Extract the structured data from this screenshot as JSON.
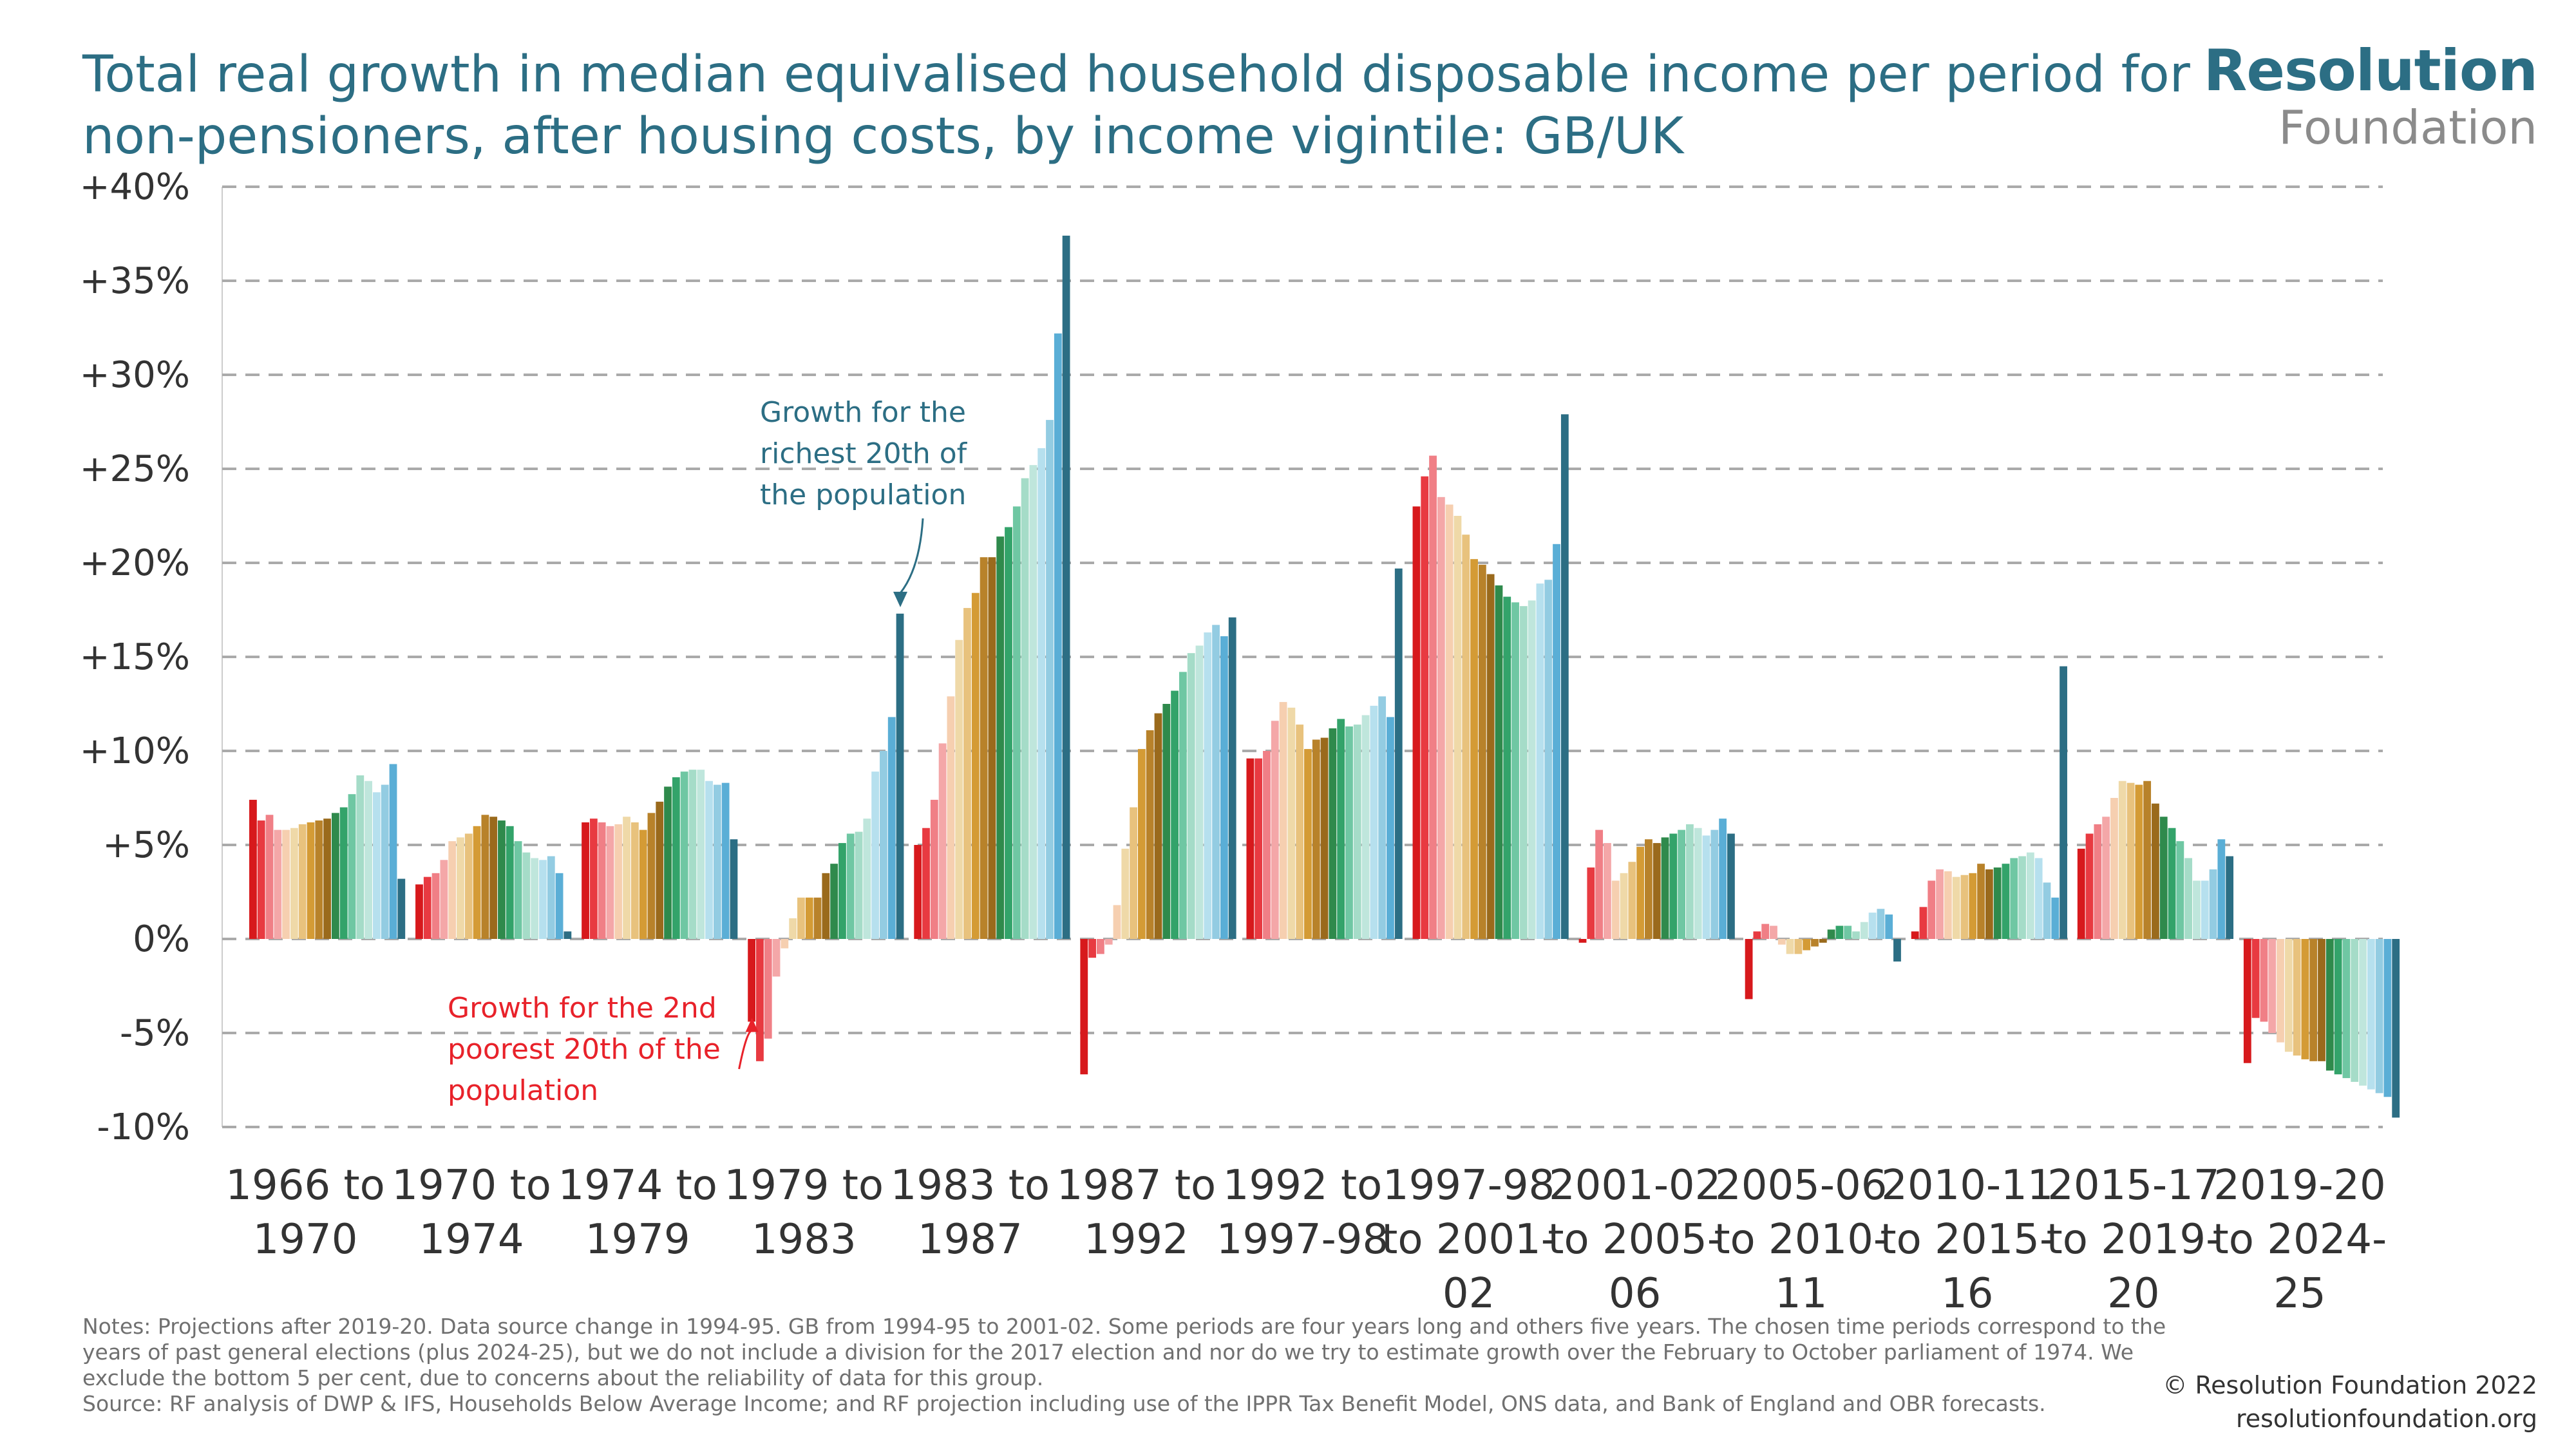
{
  "title": "Total real growth in median equivalised household disposable income per period for non-pensioners, after housing costs, by income vigintile: GB/UK",
  "logo": {
    "name": "Resolution",
    "sub": "Foundation"
  },
  "notes": "Notes: Projections after 2019-20. Data source change in 1994-95. GB from 1994-95 to 2001-02. Some periods are four years long and others five years. The chosen time periods correspond to the years of past general elections (plus 2024-25), but we do not include a division for the 2017 election and nor do we try to estimate growth over the February to October parliament of 1974. We exclude the bottom 5 per cent, due to concerns about the reliability of data for this group.",
  "source": "Source: RF analysis of DWP & IFS, Households Below Average Income; and RF projection including use of the IPPR Tax Benefit Model, ONS data, and Bank of England and OBR forecasts.",
  "credit": {
    "copyright": "© Resolution Foundation 2022",
    "url": "resolutionfoundation.org"
  },
  "colors": {
    "title": "#2c6e84",
    "annotation_poor": "#e8222a",
    "annotation_rich": "#2c6e84",
    "grid": "#aaaaaa",
    "vigintiles": [
      "#d7191c",
      "#e83a41",
      "#f07f86",
      "#f4a7a8",
      "#f6cfb0",
      "#efd9a8",
      "#e8c27d",
      "#d49b35",
      "#b8822a",
      "#9a6a1c",
      "#2f8a4c",
      "#33a36a",
      "#6fc7a3",
      "#a5dcc8",
      "#bfe6dc",
      "#b6e0ee",
      "#93cce2",
      "#5aaed6",
      "#2c6e84"
    ]
  },
  "annotations": [
    {
      "id": "rich",
      "lines": [
        "Growth for the",
        "richest 20th of",
        "the population"
      ],
      "period_index": 3,
      "vigintile_index": 18
    },
    {
      "id": "poor",
      "lines": [
        "Growth for the 2nd",
        "poorest 20th of the",
        "population"
      ],
      "period_index": 3,
      "vigintile_index": 0
    }
  ],
  "chart_data": {
    "type": "bar",
    "title": "Total real growth in median equivalised household disposable income per period for non-pensioners, after housing costs, by income vigintile: GB/UK",
    "xlabel": "",
    "ylabel": "",
    "ylim": [
      -10,
      40
    ],
    "yticks": [
      40,
      35,
      30,
      25,
      20,
      15,
      10,
      5,
      0,
      -5,
      -10
    ],
    "ytick_labels": [
      "+40%",
      "+35%",
      "+30%",
      "+25%",
      "+20%",
      "+15%",
      "+10%",
      "+5%",
      "0%",
      "-5%",
      "-10%"
    ],
    "grid": true,
    "legend": "none",
    "categories": [
      "1966 to 1970",
      "1970 to 1974",
      "1974 to 1979",
      "1979 to 1983",
      "1983 to 1987",
      "1987 to 1992",
      "1992 to 1997-98",
      "1997-98 to 2001-02",
      "2001-02 to 2005-06",
      "2005-06 to 2010-11",
      "2010-11 to 2015-16",
      "2015-17 to 2019-20",
      "2019-20 to 2024-25"
    ],
    "category_lines": [
      [
        "1966 to",
        "1970"
      ],
      [
        "1970 to",
        "1974"
      ],
      [
        "1974 to",
        "1979"
      ],
      [
        "1979 to",
        "1983"
      ],
      [
        "1983 to",
        "1987"
      ],
      [
        "1987 to",
        "1992"
      ],
      [
        "1992 to",
        "1997-98"
      ],
      [
        "1997-98",
        "to 2001-",
        "02"
      ],
      [
        "2001-02",
        "to 2005-",
        "06"
      ],
      [
        "2005-06",
        "to 2010-",
        "11"
      ],
      [
        "2010-11",
        "to 2015-",
        "16"
      ],
      [
        "2015-17",
        "to 2019-",
        "20"
      ],
      [
        "2019-20",
        "to 2024-",
        "25"
      ]
    ],
    "values": [
      [
        7.4,
        6.3,
        6.6,
        5.8,
        5.8,
        5.9,
        6.1,
        6.2,
        6.3,
        6.4,
        6.7,
        7.0,
        7.7,
        8.7,
        8.4,
        7.8,
        8.2,
        9.3,
        3.2
      ],
      [
        2.9,
        3.3,
        3.5,
        4.2,
        5.2,
        5.4,
        5.6,
        6.0,
        6.6,
        6.5,
        6.3,
        6.0,
        5.2,
        4.6,
        4.3,
        4.2,
        4.4,
        3.5,
        0.4
      ],
      [
        6.2,
        6.4,
        6.2,
        6.0,
        6.1,
        6.5,
        6.2,
        5.8,
        6.7,
        7.3,
        8.1,
        8.6,
        8.9,
        9.0,
        9.0,
        8.4,
        8.2,
        8.3,
        5.3
      ],
      [
        -4.4,
        -6.5,
        -5.3,
        -2.0,
        -0.5,
        1.1,
        2.2,
        2.2,
        2.2,
        3.5,
        4.0,
        5.1,
        5.6,
        5.7,
        6.4,
        8.9,
        10.0,
        11.8,
        17.3
      ],
      [
        5.0,
        5.9,
        7.4,
        10.4,
        12.9,
        15.9,
        17.6,
        18.4,
        20.3,
        20.3,
        21.4,
        21.9,
        23.0,
        24.5,
        25.2,
        26.1,
        27.6,
        32.2,
        37.4
      ],
      [
        -7.2,
        -1.0,
        -0.8,
        -0.3,
        1.8,
        4.8,
        7.0,
        10.1,
        11.1,
        12.0,
        12.5,
        13.2,
        14.2,
        15.2,
        15.6,
        16.3,
        16.7,
        16.1,
        17.1
      ],
      [
        9.6,
        9.6,
        10.0,
        11.6,
        12.6,
        12.3,
        11.4,
        10.1,
        10.6,
        10.7,
        11.2,
        11.7,
        11.3,
        11.4,
        11.9,
        12.4,
        12.9,
        11.8,
        19.7
      ],
      [
        23.0,
        24.6,
        25.7,
        23.5,
        23.1,
        22.5,
        21.5,
        20.2,
        19.9,
        19.4,
        18.8,
        18.2,
        17.9,
        17.7,
        18.0,
        18.9,
        19.1,
        21.0,
        27.9
      ],
      [
        -0.2,
        3.8,
        5.8,
        5.1,
        3.1,
        3.5,
        4.1,
        4.9,
        5.3,
        5.1,
        5.4,
        5.6,
        5.8,
        6.1,
        5.9,
        5.5,
        5.8,
        6.4,
        5.6
      ],
      [
        -3.2,
        0.4,
        0.8,
        0.7,
        -0.3,
        -0.8,
        -0.8,
        -0.6,
        -0.4,
        -0.2,
        0.5,
        0.7,
        0.7,
        0.4,
        0.9,
        1.4,
        1.6,
        1.3,
        -1.2
      ],
      [
        0.4,
        1.7,
        3.1,
        3.7,
        3.6,
        3.3,
        3.4,
        3.5,
        4.0,
        3.7,
        3.8,
        4.0,
        4.3,
        4.4,
        4.6,
        4.3,
        3.0,
        2.2,
        14.5
      ],
      [
        4.8,
        5.6,
        6.1,
        6.5,
        7.5,
        8.4,
        8.3,
        8.2,
        8.4,
        7.2,
        6.5,
        5.9,
        5.2,
        4.3,
        3.1,
        3.1,
        3.7,
        5.3,
        4.4
      ],
      [
        -6.6,
        -4.2,
        -4.4,
        -5.0,
        -5.5,
        -6.0,
        -6.2,
        -6.4,
        -6.5,
        -6.5,
        -7.0,
        -7.2,
        -7.4,
        -7.6,
        -7.8,
        -8.0,
        -8.2,
        -8.4,
        -9.5
      ]
    ]
  }
}
